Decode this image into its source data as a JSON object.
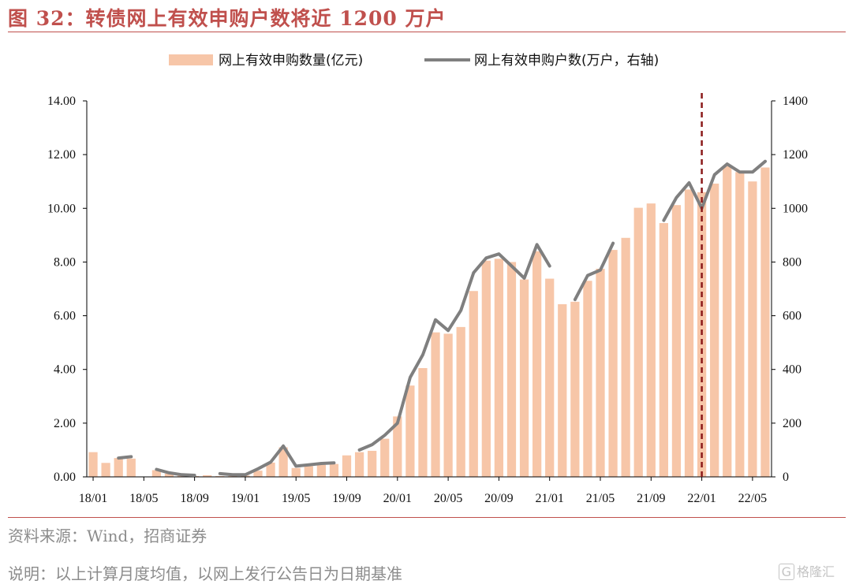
{
  "figure": {
    "title": "图 32：转债网上有效申购户数将近 1200 万户",
    "source": "资料来源：Wind，招商证券",
    "note": "说明：以上计算月度均值，以网上发行公告日为日期基准",
    "logo_mark": "G",
    "logo_text": "格隆汇"
  },
  "chart_data": {
    "type": "bar",
    "title": "",
    "xlabel": "",
    "ylabel": "",
    "categories": [
      "18/01",
      "18/02",
      "18/03",
      "18/04",
      "18/05",
      "18/06",
      "18/07",
      "18/08",
      "18/09",
      "18/10",
      "18/11",
      "18/12",
      "19/01",
      "19/02",
      "19/03",
      "19/04",
      "19/05",
      "19/06",
      "19/07",
      "19/08",
      "19/09",
      "19/10",
      "19/11",
      "19/12",
      "20/01",
      "20/02",
      "20/03",
      "20/04",
      "20/05",
      "20/06",
      "20/07",
      "20/08",
      "20/09",
      "20/10",
      "20/11",
      "20/12",
      "21/01",
      "21/02",
      "21/03",
      "21/04",
      "21/05",
      "21/06",
      "21/07",
      "21/08",
      "21/09",
      "21/10",
      "21/11",
      "21/12",
      "22/01",
      "22/02",
      "22/03",
      "22/04",
      "22/05",
      "22/06"
    ],
    "x_tick_labels": [
      "18/01",
      "18/05",
      "18/09",
      "19/01",
      "19/05",
      "19/09",
      "20/01",
      "20/05",
      "20/09",
      "21/01",
      "21/05",
      "21/09",
      "22/01",
      "22/05"
    ],
    "y_left": {
      "min": 0,
      "max": 14,
      "step": 2,
      "tick_labels": [
        "0.00",
        "2.00",
        "4.00",
        "6.00",
        "8.00",
        "10.00",
        "12.00",
        "14.00"
      ]
    },
    "y_right": {
      "min": 0,
      "max": 1400,
      "step": 200,
      "tick_labels": [
        "0",
        "200",
        "400",
        "600",
        "800",
        "1000",
        "1200",
        "1400"
      ]
    },
    "series": [
      {
        "name": "网上有效申购数量(亿元)",
        "type": "bar",
        "axis": "left",
        "color": "#f7c6a8",
        "values": [
          0.92,
          0.52,
          0.7,
          0.68,
          null,
          0.25,
          0.12,
          0.05,
          0.03,
          0.06,
          0.03,
          0.03,
          0.05,
          0.23,
          0.53,
          1.1,
          0.33,
          0.4,
          0.45,
          0.48,
          0.8,
          0.92,
          0.97,
          1.42,
          2.25,
          3.4,
          4.05,
          5.38,
          5.33,
          5.58,
          6.92,
          8.05,
          8.12,
          8.0,
          7.35,
          8.4,
          7.38,
          6.43,
          6.52,
          7.3,
          7.75,
          8.45,
          8.9,
          10.02,
          10.18,
          9.45,
          10.12,
          10.7,
          10.6,
          10.92,
          11.57,
          11.35,
          11.0,
          11.52
        ]
      },
      {
        "name": "网上有效申购户数(万户，右轴)",
        "type": "line",
        "axis": "right",
        "color": "#7f7f7f",
        "values": [
          null,
          null,
          70,
          75,
          null,
          28,
          15,
          8,
          6,
          null,
          12,
          8,
          8,
          30,
          55,
          115,
          40,
          45,
          50,
          52,
          null,
          100,
          120,
          155,
          200,
          370,
          455,
          585,
          545,
          620,
          760,
          815,
          830,
          785,
          740,
          865,
          785,
          null,
          660,
          750,
          770,
          870,
          null,
          null,
          null,
          955,
          1040,
          1095,
          1000,
          1125,
          1165,
          1135,
          1135,
          1175
        ]
      }
    ],
    "annotation": {
      "type": "vertical-dashed-line",
      "at": "22/01",
      "color": "#8b1a1a"
    },
    "legend": {
      "position": "top-center"
    },
    "grid": false
  }
}
